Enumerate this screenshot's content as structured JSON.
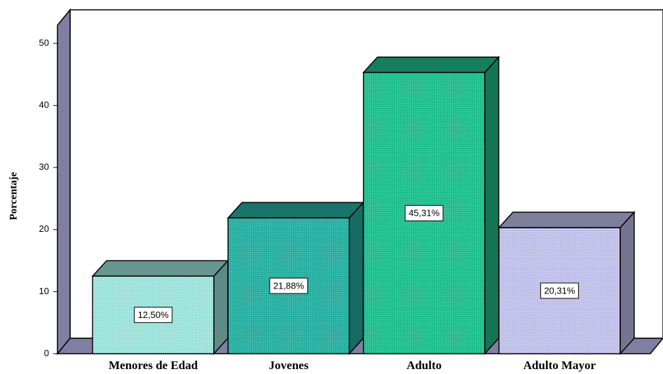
{
  "chart_data": {
    "type": "bar3d",
    "ylabel": "Porcentaje",
    "categories": [
      "Menores de Edad",
      "Jovenes",
      "Adulto",
      "Adulto Mayor"
    ],
    "values": [
      12.5,
      21.88,
      45.31,
      20.31
    ],
    "value_labels": [
      "12,50%",
      "21,88%",
      "45,31%",
      "20,31%"
    ],
    "colors": [
      "#9fe6de",
      "#27b2a3",
      "#1fc28f",
      "#c3c3ee"
    ],
    "ylim": [
      0,
      50
    ],
    "yticks": [
      0,
      10,
      20,
      30,
      40,
      50
    ],
    "grid": false
  }
}
